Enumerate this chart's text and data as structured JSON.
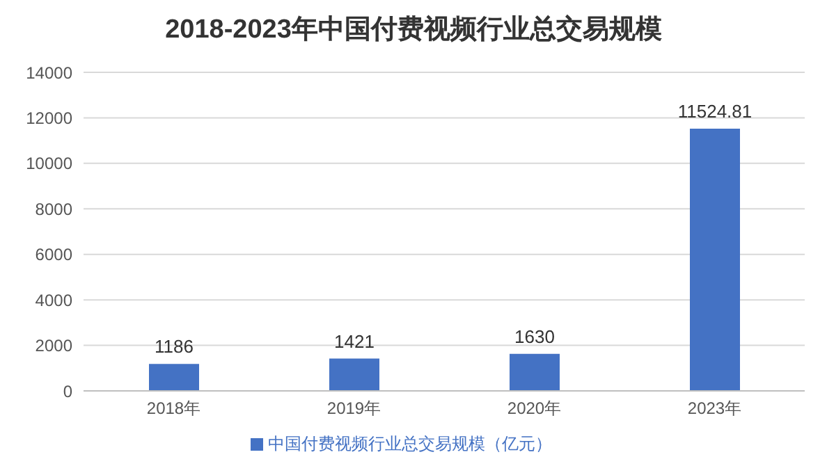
{
  "chart_data": {
    "type": "bar",
    "title": "2018-2023年中国付费视频行业总交易规模",
    "categories": [
      "2018年",
      "2019年",
      "2020年",
      "2023年"
    ],
    "series": [
      {
        "name": "中国付费视频行业总交易规模（亿元）",
        "color": "#4472c4",
        "values": [
          1186,
          1421,
          1630,
          11524.81
        ]
      }
    ],
    "ylim": [
      0,
      14000
    ],
    "yticks": [
      0,
      2000,
      4000,
      6000,
      8000,
      10000,
      12000,
      14000
    ],
    "grid": "y",
    "legend": "bottom",
    "data_labels": true
  }
}
